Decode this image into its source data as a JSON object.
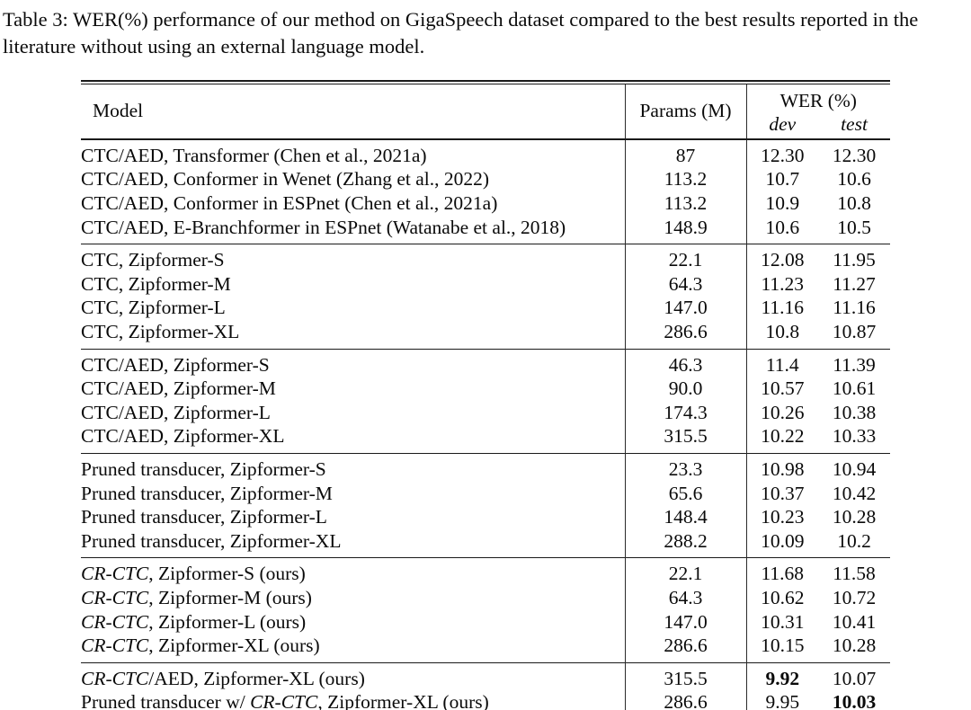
{
  "caption": "Table 3: WER(%) performance of our method on GigaSpeech dataset compared to the best results reported in the literature without using an external language model.",
  "table": {
    "header": {
      "model": "Model",
      "params": "Params (M)",
      "wer": "WER (%)",
      "dev": "dev",
      "test": "test"
    },
    "groups": [
      {
        "rows": [
          {
            "model": "CTC/AED, Transformer (Chen et al., 2021a)",
            "params": "87",
            "dev": "12.30",
            "test": "12.30",
            "bold": null
          },
          {
            "model": "CTC/AED, Conformer in Wenet (Zhang et al., 2022)",
            "params": "113.2",
            "dev": "10.7",
            "test": "10.6",
            "bold": null
          },
          {
            "model": "CTC/AED, Conformer in ESPnet (Chen et al., 2021a)",
            "params": "113.2",
            "dev": "10.9",
            "test": "10.8",
            "bold": null
          },
          {
            "model": "CTC/AED, E-Branchformer in ESPnet (Watanabe et al., 2018)",
            "params": "148.9",
            "dev": "10.6",
            "test": "10.5",
            "bold": null
          }
        ]
      },
      {
        "rows": [
          {
            "model": "CTC, Zipformer-S",
            "params": "22.1",
            "dev": "12.08",
            "test": "11.95",
            "bold": null
          },
          {
            "model": "CTC, Zipformer-M",
            "params": "64.3",
            "dev": "11.23",
            "test": "11.27",
            "bold": null
          },
          {
            "model": "CTC, Zipformer-L",
            "params": "147.0",
            "dev": "11.16",
            "test": "11.16",
            "bold": null
          },
          {
            "model": "CTC, Zipformer-XL",
            "params": "286.6",
            "dev": "10.8",
            "test": "10.87",
            "bold": null
          }
        ]
      },
      {
        "rows": [
          {
            "model": "CTC/AED, Zipformer-S",
            "params": "46.3",
            "dev": "11.4",
            "test": "11.39",
            "bold": null
          },
          {
            "model": "CTC/AED, Zipformer-M",
            "params": "90.0",
            "dev": "10.57",
            "test": "10.61",
            "bold": null
          },
          {
            "model": "CTC/AED, Zipformer-L",
            "params": "174.3",
            "dev": "10.26",
            "test": "10.38",
            "bold": null
          },
          {
            "model": "CTC/AED, Zipformer-XL",
            "params": "315.5",
            "dev": "10.22",
            "test": "10.33",
            "bold": null
          }
        ]
      },
      {
        "rows": [
          {
            "model": "Pruned transducer, Zipformer-S",
            "params": "23.3",
            "dev": "10.98",
            "test": "10.94",
            "bold": null
          },
          {
            "model": "Pruned transducer, Zipformer-M",
            "params": "65.6",
            "dev": "10.37",
            "test": "10.42",
            "bold": null
          },
          {
            "model": "Pruned transducer, Zipformer-L",
            "params": "148.4",
            "dev": "10.23",
            "test": "10.28",
            "bold": null
          },
          {
            "model": "Pruned transducer, Zipformer-XL",
            "params": "288.2",
            "dev": "10.09",
            "test": "10.2",
            "bold": null
          }
        ]
      },
      {
        "rows": [
          {
            "model": [
              {
                "text": "CR-CTC",
                "italic": true
              },
              {
                "text": ", Zipformer-S (ours)"
              }
            ],
            "params": "22.1",
            "dev": "11.68",
            "test": "11.58",
            "bold": null
          },
          {
            "model": [
              {
                "text": "CR-CTC",
                "italic": true
              },
              {
                "text": ", Zipformer-M (ours)"
              }
            ],
            "params": "64.3",
            "dev": "10.62",
            "test": "10.72",
            "bold": null
          },
          {
            "model": [
              {
                "text": "CR-CTC",
                "italic": true
              },
              {
                "text": ", Zipformer-L (ours)"
              }
            ],
            "params": "147.0",
            "dev": "10.31",
            "test": "10.41",
            "bold": null
          },
          {
            "model": [
              {
                "text": "CR-CTC",
                "italic": true
              },
              {
                "text": ", Zipformer-XL (ours)"
              }
            ],
            "params": "286.6",
            "dev": "10.15",
            "test": "10.28",
            "bold": null
          }
        ]
      },
      {
        "rows": [
          {
            "model": [
              {
                "text": "CR-CTC",
                "italic": true
              },
              {
                "text": "/AED, Zipformer-XL (ours)"
              }
            ],
            "params": "315.5",
            "dev": "9.92",
            "test": "10.07",
            "bold": "dev"
          },
          {
            "model": [
              {
                "text": "Pruned transducer w/ "
              },
              {
                "text": "CR-CTC",
                "italic": true
              },
              {
                "text": ", Zipformer-XL (ours)"
              }
            ],
            "params": "286.6",
            "dev": "9.95",
            "test": "10.03",
            "bold": "test"
          }
        ]
      }
    ]
  }
}
